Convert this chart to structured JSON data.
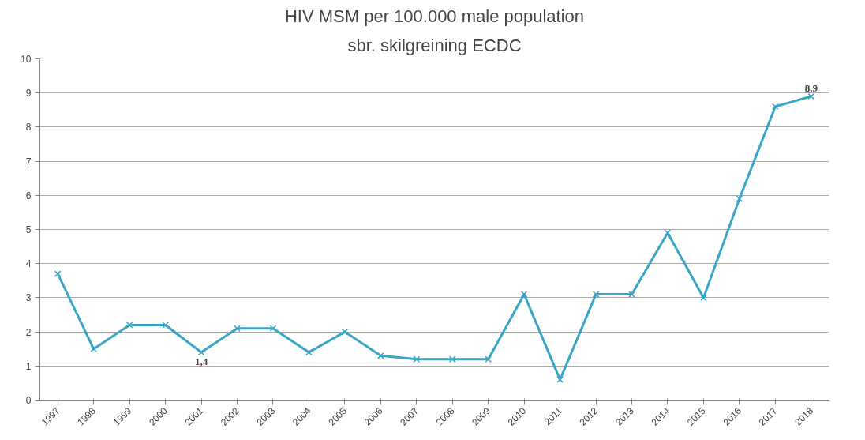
{
  "chart_data": {
    "type": "line",
    "title": "HIV MSM per 100.000 male population",
    "subtitle": "sbr. skilgreining ECDC",
    "categories": [
      "1997",
      "1998",
      "1999",
      "2000",
      "2001",
      "2002",
      "2003",
      "2004",
      "2005",
      "2006",
      "2007",
      "2008",
      "2009",
      "2010",
      "2011",
      "2012",
      "2013",
      "2014",
      "2015",
      "2016",
      "2017",
      "2018"
    ],
    "series": [
      {
        "color": "#3aa6c6",
        "values": [
          3.7,
          1.5,
          2.2,
          2.2,
          1.4,
          2.1,
          2.1,
          1.4,
          2.0,
          1.3,
          1.2,
          1.2,
          1.2,
          3.1,
          0.6,
          3.1,
          3.1,
          4.9,
          3.0,
          5.9,
          8.6,
          8.9
        ],
        "value_labels": [
          null,
          null,
          null,
          null,
          "1,4",
          null,
          null,
          null,
          null,
          null,
          null,
          null,
          null,
          null,
          null,
          null,
          null,
          null,
          null,
          null,
          null,
          "8,9"
        ]
      }
    ],
    "ylim": [
      0,
      10
    ],
    "yticks": [
      0,
      1,
      2,
      3,
      4,
      5,
      6,
      7,
      8,
      9,
      10
    ],
    "grid": "y",
    "marker": "cross",
    "line_style": "solid"
  }
}
